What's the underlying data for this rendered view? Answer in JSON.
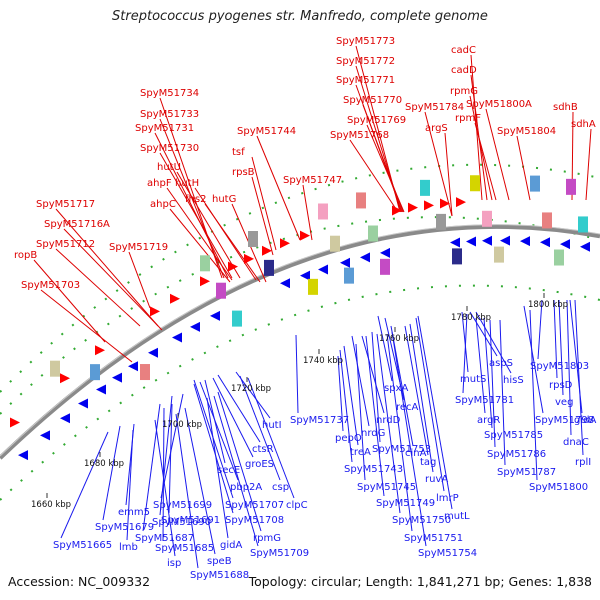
{
  "title": "Streptococcus pyogenes str. Manfredo, complete genome",
  "accession": "Accession: NC_009332",
  "summary": "Topology: circular; Length: 1,841,271 bp; Genes: 1,838",
  "ticks": [
    "1660 kbp",
    "1680 kbp",
    "1700 kbp",
    "1720 kbp",
    "1740 kbp",
    "1760 kbp",
    "1780 kbp",
    "1800 kbp"
  ],
  "outer_labels": [
    "SpyM51773",
    "SpyM51772",
    "SpyM51771",
    "SpyM51770",
    "SpyM51769",
    "SpyM51768",
    "cadC",
    "cadD",
    "rpmG",
    "rpmF",
    "SpyM51800A",
    "SpyM51784",
    "argS",
    "SpyM51804",
    "sdhB",
    "sdhA",
    "SpyM51734",
    "SpyM51733",
    "SpyM51731",
    "SpyM51730",
    "hutU",
    "hutH",
    "ahpF",
    "fhs2",
    "hutG",
    "ahpC",
    "SpyM51744",
    "tsf",
    "rpsB",
    "SpyM51747",
    "SpyM51717",
    "SpyM51716A",
    "SpyM51712",
    "SpyM51719",
    "ropB",
    "SpyM51703"
  ],
  "inner_labels": [
    "hutI",
    "SpyM51737",
    "ctsR",
    "groES",
    "secE",
    "csp",
    "pbp2A",
    "SpyM51699",
    "SpyM51707",
    "emm5",
    "SpyM51690",
    "SpyM51691",
    "SpyM51708",
    "SpyM51679",
    "clpC",
    "SpyM51687",
    "SpyM51665",
    "lmb",
    "SpyM51685",
    "rpmG",
    "gidA",
    "SpyM51709",
    "isp",
    "speB",
    "SpyM51688",
    "pepO",
    "nrdG",
    "recA",
    "spxA",
    "nrdD",
    "treA",
    "SpyM51753",
    "cinA",
    "SpyM51743",
    "tag",
    "SpyM51745",
    "ruvA",
    "SpyM51749",
    "lmrP",
    "SpyM51750",
    "mutL",
    "SpyM51751",
    "SpyM51754",
    "mutS",
    "aspS",
    "hisS",
    "SpyM51781",
    "SpyM51803",
    "rpsD",
    "argR",
    "SpyM51798",
    "veg",
    "gidA",
    "SpyM51785",
    "dnaC",
    "SpyM51786",
    "rplI",
    "SpyM51787",
    "SpyM51800"
  ],
  "colors": {
    "outer_label": "#dd0000",
    "inner_label": "#1a1aee",
    "forward_arrow": "#ff0000",
    "reverse_arrow": "#0000ee",
    "backbone": "#888888",
    "dots": "#22aa22"
  }
}
